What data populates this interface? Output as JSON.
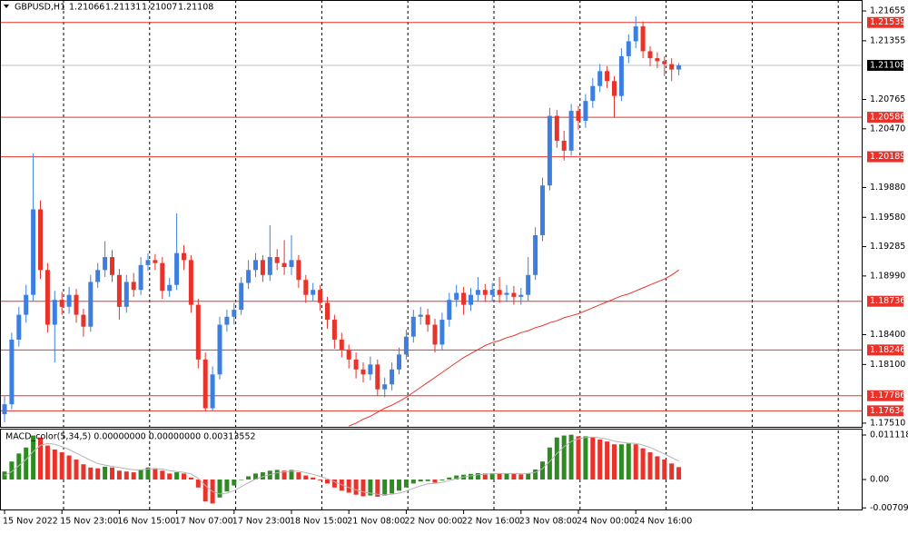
{
  "chart_data": [
    {
      "type": "candlestick",
      "title": "GBPUSD,H1",
      "categories": [
        "15 Nov 2022",
        null,
        null,
        null,
        null,
        null,
        null,
        null,
        "15 Nov 23:00",
        null,
        null,
        null,
        null,
        null,
        null,
        null,
        "16 Nov 15:00",
        null,
        null,
        null,
        null,
        null,
        null,
        null,
        "17 Nov 07:00",
        null,
        null,
        null,
        null,
        null,
        null,
        null,
        "17 Nov 23:00",
        null,
        null,
        null,
        null,
        null,
        null,
        null,
        "18 Nov 15:00",
        null,
        null,
        null,
        null,
        null,
        null,
        null,
        "21 Nov 08:00",
        null,
        null,
        null,
        null,
        null,
        null,
        null,
        "22 Nov 00:00",
        null,
        null,
        null,
        null,
        null,
        null,
        null,
        "22 Nov 16:00",
        null,
        null,
        null,
        null,
        null,
        null,
        null,
        "23 Nov 08:00",
        null,
        null,
        null,
        null,
        null,
        null,
        null,
        "24 Nov 00:00",
        null,
        null,
        null,
        null,
        null,
        null,
        null,
        "24 Nov 16:00",
        null,
        null,
        null,
        null,
        null,
        null
      ],
      "open": [
        1.176,
        1.177,
        1.1835,
        1.186,
        1.188,
        1.1966,
        1.1905,
        1.185,
        1.1875,
        1.1868,
        1.188,
        1.186,
        1.1848,
        1.1893,
        1.1905,
        1.1918,
        1.19,
        1.1868,
        1.1893,
        1.1885,
        1.191,
        1.1915,
        1.1912,
        1.1884,
        1.189,
        1.1922,
        1.1915,
        1.187,
        1.1815,
        1.1766,
        1.18,
        1.185,
        1.1858,
        1.1865,
        1.1892,
        1.1905,
        1.1915,
        1.19,
        1.1918,
        1.1912,
        1.1908,
        1.1915,
        1.1895,
        1.188,
        1.1885,
        1.1872,
        1.1855,
        1.1835,
        1.1825,
        1.1815,
        1.1805,
        1.18,
        1.181,
        1.1785,
        1.179,
        1.1805,
        1.182,
        1.1838,
        1.1858,
        1.186,
        1.185,
        1.183,
        1.1855,
        1.1875,
        1.1882,
        1.187,
        1.188,
        1.1885,
        1.188,
        1.1885,
        1.188,
        1.1882,
        1.1878,
        1.188,
        1.19,
        1.194,
        1.199,
        1.206,
        1.2035,
        1.2025,
        1.2065,
        1.2055,
        1.2075,
        1.209,
        1.2105,
        1.2095,
        1.208,
        1.212,
        1.2135,
        1.215,
        1.2125,
        1.2118,
        1.2115,
        1.2112,
        1.21066
      ],
      "high": [
        1.1778,
        1.1842,
        1.1868,
        1.189,
        1.2022,
        1.1975,
        1.1912,
        1.1884,
        1.1883,
        1.1888,
        1.1886,
        1.1866,
        1.19,
        1.1912,
        1.1934,
        1.1925,
        1.1906,
        1.19,
        1.1902,
        1.1918,
        1.1922,
        1.1921,
        1.1918,
        1.1897,
        1.1962,
        1.193,
        1.192,
        1.1876,
        1.1822,
        1.1808,
        1.1858,
        1.1865,
        1.1872,
        1.1898,
        1.1915,
        1.1922,
        1.192,
        1.195,
        1.1926,
        1.1935,
        1.194,
        1.192,
        1.19,
        1.1892,
        1.189,
        1.1878,
        1.186,
        1.1842,
        1.183,
        1.1822,
        1.1812,
        1.1818,
        1.1815,
        1.1797,
        1.1812,
        1.1827,
        1.1845,
        1.1865,
        1.1868,
        1.1866,
        1.1856,
        1.1862,
        1.1882,
        1.189,
        1.1888,
        1.1887,
        1.1898,
        1.1891,
        1.1892,
        1.1898,
        1.189,
        1.1889,
        1.1887,
        1.1918,
        1.1948,
        1.1998,
        1.2068,
        1.2066,
        1.2045,
        1.2072,
        1.207,
        1.2082,
        1.2098,
        1.2112,
        1.211,
        1.21,
        1.2128,
        1.2142,
        1.216,
        1.2155,
        1.213,
        1.2124,
        1.212,
        1.2118,
        1.21131
      ],
      "low": [
        1.1752,
        1.1765,
        1.1828,
        1.1852,
        1.1874,
        1.1896,
        1.1842,
        1.1812,
        1.186,
        1.1861,
        1.1852,
        1.1838,
        1.1843,
        1.1887,
        1.1898,
        1.1893,
        1.1855,
        1.1862,
        1.1878,
        1.188,
        1.1904,
        1.1905,
        1.1876,
        1.1878,
        1.1885,
        1.1905,
        1.1862,
        1.1806,
        1.1763,
        1.1763,
        1.1795,
        1.1843,
        1.185,
        1.186,
        1.1886,
        1.1898,
        1.1893,
        1.1894,
        1.1905,
        1.19,
        1.19,
        1.1887,
        1.1872,
        1.1874,
        1.1864,
        1.1846,
        1.1826,
        1.1817,
        1.1806,
        1.1796,
        1.1792,
        1.1794,
        1.1778,
        1.1777,
        1.1784,
        1.18,
        1.1815,
        1.1832,
        1.185,
        1.1843,
        1.1822,
        1.1825,
        1.1848,
        1.1868,
        1.186,
        1.1864,
        1.1874,
        1.1873,
        1.1874,
        1.1872,
        1.1873,
        1.187,
        1.187,
        1.1874,
        1.1895,
        1.1934,
        1.1985,
        1.2028,
        1.2015,
        1.202,
        1.2046,
        1.2048,
        1.2068,
        1.2084,
        1.2088,
        1.2058,
        1.2075,
        1.2113,
        1.2128,
        1.2118,
        1.211,
        1.2108,
        1.21,
        1.2095,
        1.21007
      ],
      "close": [
        1.177,
        1.1835,
        1.186,
        1.188,
        1.1966,
        1.1905,
        1.185,
        1.1875,
        1.1868,
        1.188,
        1.186,
        1.1848,
        1.1893,
        1.1905,
        1.1918,
        1.19,
        1.1868,
        1.1893,
        1.1885,
        1.191,
        1.1915,
        1.1912,
        1.1884,
        1.189,
        1.1922,
        1.1915,
        1.187,
        1.1815,
        1.1766,
        1.18,
        1.185,
        1.1858,
        1.1865,
        1.1892,
        1.1905,
        1.1915,
        1.19,
        1.1918,
        1.1912,
        1.1908,
        1.1915,
        1.1895,
        1.188,
        1.1885,
        1.1872,
        1.1855,
        1.1835,
        1.1825,
        1.1815,
        1.1805,
        1.18,
        1.181,
        1.1785,
        1.179,
        1.1805,
        1.182,
        1.1838,
        1.1858,
        1.186,
        1.185,
        1.183,
        1.1855,
        1.1875,
        1.1882,
        1.187,
        1.188,
        1.1885,
        1.188,
        1.1885,
        1.188,
        1.1882,
        1.1878,
        1.188,
        1.19,
        1.194,
        1.199,
        1.206,
        1.2035,
        1.2025,
        1.2065,
        1.2055,
        1.2075,
        1.209,
        1.2105,
        1.2095,
        1.208,
        1.212,
        1.2135,
        1.215,
        1.2125,
        1.2118,
        1.2115,
        1.2112,
        1.21066,
        1.21108
      ],
      "up_color": "#3d7fe0",
      "down_color": "#e8322a",
      "ma": {
        "color": "#e8322a",
        "values": [
          null,
          null,
          null,
          null,
          null,
          null,
          null,
          null,
          null,
          null,
          null,
          null,
          null,
          null,
          null,
          null,
          null,
          null,
          null,
          null,
          null,
          null,
          null,
          null,
          null,
          null,
          null,
          null,
          null,
          null,
          null,
          null,
          null,
          null,
          null,
          null,
          null,
          null,
          null,
          null,
          null,
          null,
          null,
          null,
          null,
          null,
          null,
          null,
          1.1748,
          1.1751,
          1.1755,
          1.1758,
          1.1762,
          1.1766,
          1.1769,
          1.1773,
          1.1777,
          1.1782,
          1.1787,
          1.1792,
          1.1797,
          1.1802,
          1.1807,
          1.1812,
          1.1817,
          1.1821,
          1.1825,
          1.1829,
          1.1832,
          1.1834,
          1.1837,
          1.1839,
          1.1842,
          1.1844,
          1.1847,
          1.1849,
          1.1852,
          1.1854,
          1.1857,
          1.1859,
          1.1861,
          1.1864,
          1.1867,
          1.187,
          1.1873,
          1.1876,
          1.1879,
          1.1881,
          1.1884,
          1.1887,
          1.189,
          1.1893,
          1.1896,
          1.19,
          1.1905
        ]
      },
      "levels": [
        1.21539,
        1.20586,
        1.20189,
        1.18736,
        1.18246,
        1.17786,
        1.17634
      ],
      "level_color": "#e8322a",
      "last_price": 1.21108,
      "ylim": [
        1.17473,
        1.21765
      ],
      "yticks": [
        1.21655,
        1.21355,
        1.20765,
        {
          "value": 1.2047,
          "label": "1.20470"
        },
        {
          "value": 1.1988,
          "label": "1.19880"
        },
        {
          "value": 1.1958,
          "label": "1.19580"
        },
        1.19285,
        {
          "value": 1.1899,
          "label": "1.18990"
        },
        {
          "value": 1.184,
          "label": "1.18400"
        },
        {
          "value": 1.181,
          "label": "1.18100"
        },
        {
          "value": 1.1751,
          "label": "1.17510"
        }
      ]
    },
    {
      "type": "histogram",
      "title": "MACD_color(5,34,5) 0.00000000 0.00000000 0.00313552",
      "values": [
        0.002,
        0.0045,
        0.0065,
        0.008,
        0.011,
        0.0105,
        0.0085,
        0.0075,
        0.0068,
        0.006,
        0.005,
        0.0038,
        0.003,
        0.0028,
        0.0032,
        0.003,
        0.0022,
        0.002,
        0.0018,
        0.0025,
        0.003,
        0.0028,
        0.0022,
        0.0015,
        0.0018,
        0.0015,
        0.0005,
        -0.002,
        -0.0055,
        -0.006,
        -0.0045,
        -0.003,
        -0.0015,
        0.0,
        0.0008,
        0.0015,
        0.0018,
        0.0022,
        0.0024,
        0.0022,
        0.0024,
        0.0018,
        0.001,
        0.0005,
        -0.0002,
        -0.001,
        -0.002,
        -0.0028,
        -0.0033,
        -0.0038,
        -0.0042,
        -0.004,
        -0.0043,
        -0.004,
        -0.0035,
        -0.0028,
        -0.002,
        -0.001,
        -0.0005,
        -0.0004,
        -0.0008,
        -0.0002,
        0.0005,
        0.001,
        0.0012,
        0.0014,
        0.0016,
        0.0015,
        0.0016,
        0.0015,
        0.0015,
        0.0014,
        0.0013,
        0.0016,
        0.0025,
        0.0045,
        0.008,
        0.0105,
        0.011,
        0.0112,
        0.0108,
        0.0108,
        0.0105,
        0.01,
        0.0095,
        0.0088,
        0.0088,
        0.009,
        0.0088,
        0.0078,
        0.0068,
        0.0058,
        0.005,
        0.004,
        0.0031
      ],
      "up_color": "#2e8b22",
      "down_color": "#e8322a",
      "signal": {
        "color": "#b4b4b4",
        "values": [
          0.001,
          0.002,
          0.0035,
          0.005,
          0.007,
          0.0085,
          0.009,
          0.0088,
          0.0082,
          0.0075,
          0.0066,
          0.0057,
          0.0048,
          0.004,
          0.0036,
          0.0033,
          0.003,
          0.0027,
          0.0024,
          0.0024,
          0.0026,
          0.0027,
          0.0026,
          0.0022,
          0.002,
          0.0018,
          0.0014,
          0.0003,
          -0.0015,
          -0.003,
          -0.0036,
          -0.0034,
          -0.0028,
          -0.0018,
          -0.0008,
          0.0001,
          0.0007,
          0.0012,
          0.0017,
          0.0019,
          0.0021,
          0.0021,
          0.0017,
          0.0013,
          0.0008,
          0.0002,
          -0.0006,
          -0.0013,
          -0.002,
          -0.0026,
          -0.0031,
          -0.0034,
          -0.0037,
          -0.0038,
          -0.0037,
          -0.0034,
          -0.0029,
          -0.0022,
          -0.0016,
          -0.0011,
          -0.001,
          -0.0007,
          -0.0003,
          0.0002,
          0.0006,
          0.0009,
          0.0012,
          0.0013,
          0.0014,
          0.0015,
          0.0015,
          0.0015,
          0.0014,
          0.0015,
          0.0018,
          0.0027,
          0.0045,
          0.0065,
          0.0082,
          0.0095,
          0.0102,
          0.0105,
          0.0106,
          0.0104,
          0.0101,
          0.0096,
          0.0093,
          0.0091,
          0.009,
          0.0086,
          0.008,
          0.0072,
          0.0064,
          0.0055,
          0.0046
        ]
      },
      "ylim": [
        -0.00772,
        0.01271
      ],
      "yticks": [
        0.0111181,
        {
          "value": 0,
          "label": "0.00"
        },
        -0.007096
      ]
    }
  ]
}
